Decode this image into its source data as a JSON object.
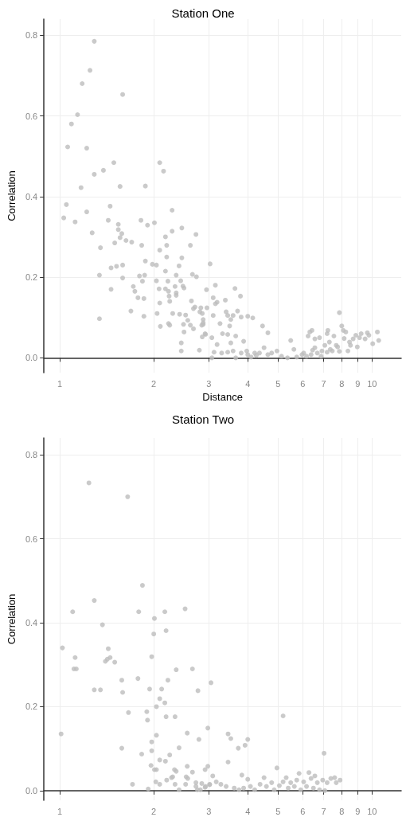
{
  "chart_data": [
    {
      "type": "scatter",
      "title": "Station One",
      "xlabel": "Distance",
      "ylabel": "Correlation",
      "log": "x",
      "grid": true,
      "marker": "circle",
      "color": "#bdbdbd",
      "xlim": [
        0.89,
        12.4
      ],
      "xticks": [
        1,
        2,
        3,
        4,
        5,
        6,
        7,
        8,
        9,
        10
      ],
      "ylim": [
        -0.037,
        0.84
      ],
      "yticks": [
        {
          "value": 0,
          "label": "0.0"
        },
        0.2,
        0.4,
        0.6,
        0.8
      ],
      "x": [
        1.29,
        1.25,
        1.18,
        1.59,
        1.14,
        1.09,
        1.06,
        1.22,
        1.49,
        2.09,
        2.15,
        1.38,
        1.29,
        1.56,
        1.88,
        1.17,
        1.05,
        1.45,
        2.29,
        1.22,
        1.03,
        1.12,
        1.43,
        1.82,
        1.54,
        1.91,
        2.01,
        2.46,
        2.73,
        1.54,
        2.29,
        1.58,
        2.18,
        1.56,
        1.27,
        1.63,
        1.7,
        1.5,
        1.35,
        1.83,
        2.2,
        2.62,
        2.09,
        2.2,
        2.46,
        1.88,
        1.98,
        2.04,
        1.59,
        1.52,
        1.46,
        2.41,
        2.18,
        1.34,
        2.36,
        1.87,
        1.8,
        2.66,
        2.74,
        1.59,
        2.04,
        1.84,
        2.22,
        2.44,
        1.72,
        2.34,
        2.48,
        2.5,
        1.46,
        2.08,
        2.18,
        2.95,
        1.74,
        2.23,
        2.36,
        2.24,
        2.36,
        1.78,
        1.86,
        2.25,
        2.64,
        2.09,
        2.71,
        2.68,
        2.83,
        2.96,
        1.69,
        2.81,
        2.3,
        2.86,
        2.05,
        2.42,
        2.53,
        1.34,
        1.86,
        2.57,
        2.23,
        2.25,
        2.49,
        2.62,
        2.85,
        2.88,
        2.1,
        2.68,
        2.5,
        2.92,
        2.86,
        2.45,
        2.45,
        2.8,
        3.03,
        3.15,
        3.64,
        3.1,
        3.79,
        3.39,
        3.19,
        3.15,
        3.41,
        3.71,
        3.45,
        3.59,
        3.1,
        3.81,
        4.0,
        4.15,
        3.53,
        2.88,
        2.88,
        3.26,
        4.46,
        3.5,
        3.32,
        3.45,
        4.64,
        2.93,
        3.07,
        3.66,
        3.53,
        3.19,
        3.88,
        3.12,
        3.3,
        3.45,
        3.07,
        3.59,
        3.66,
        3.81,
        4.0,
        4.1,
        4.26,
        4.36,
        4.51,
        4.64,
        4.77,
        4.96,
        5.13,
        5.36,
        5.49,
        5.62,
        5.74,
        5.97,
        6.17,
        6.24,
        6.32,
        6.42,
        6.45,
        6.56,
        6.56,
        6.79,
        6.87,
        6.91,
        7.06,
        7.18,
        7.22,
        7.3,
        7.46,
        7.55,
        7.68,
        7.86,
        7.86,
        8.0,
        8.09,
        8.24,
        8.14,
        8.37,
        8.47,
        8.53,
        8.7,
        8.87,
        8.97,
        9.12,
        9.23,
        9.5,
        9.66,
        9.77,
        10.05,
        10.4,
        10.5,
        6.68,
        7.18,
        7.35,
        7.76,
        6.38,
        6.04,
        4.21,
        3.97
      ],
      "values": [
        0.785,
        0.713,
        0.68,
        0.653,
        0.603,
        0.58,
        0.523,
        0.52,
        0.484,
        0.484,
        0.463,
        0.465,
        0.455,
        0.425,
        0.426,
        0.422,
        0.38,
        0.376,
        0.366,
        0.362,
        0.347,
        0.337,
        0.341,
        0.341,
        0.331,
        0.329,
        0.335,
        0.322,
        0.306,
        0.318,
        0.314,
        0.308,
        0.3,
        0.298,
        0.31,
        0.291,
        0.287,
        0.285,
        0.273,
        0.279,
        0.279,
        0.279,
        0.267,
        0.25,
        0.248,
        0.24,
        0.232,
        0.23,
        0.23,
        0.227,
        0.223,
        0.228,
        0.215,
        0.205,
        0.205,
        0.205,
        0.203,
        0.207,
        0.201,
        0.198,
        0.191,
        0.19,
        0.19,
        0.191,
        0.177,
        0.177,
        0.178,
        0.173,
        0.17,
        0.171,
        0.171,
        0.169,
        0.165,
        0.165,
        0.161,
        0.153,
        0.155,
        0.149,
        0.147,
        0.14,
        0.141,
        0.136,
        0.126,
        0.122,
        0.124,
        0.124,
        0.116,
        0.114,
        0.11,
        0.11,
        0.11,
        0.108,
        0.106,
        0.097,
        0.103,
        0.093,
        0.085,
        0.081,
        0.083,
        0.081,
        0.081,
        0.087,
        0.078,
        0.072,
        0.064,
        0.06,
        0.052,
        0.037,
        0.017,
        0.019,
        0.233,
        0.18,
        0.172,
        0.149,
        0.153,
        0.143,
        0.138,
        0.134,
        0.114,
        0.116,
        0.105,
        0.105,
        0.105,
        0.101,
        0.103,
        0.099,
        0.095,
        0.095,
        0.083,
        0.085,
        0.079,
        0.079,
        0.06,
        0.058,
        0.062,
        0.058,
        0.05,
        0.054,
        0.037,
        0.033,
        0.041,
        0.014,
        0.012,
        0.014,
        0.0,
        0.017,
        0.0,
        0.012,
        0.008,
        0.002,
        0.006,
        0.012,
        0.025,
        0.008,
        0.012,
        0.017,
        0.004,
        0.0,
        0.043,
        0.021,
        0.002,
        0.008,
        0.004,
        0.054,
        0.064,
        0.068,
        0.019,
        0.025,
        0.047,
        0.05,
        0.004,
        0.017,
        0.031,
        0.06,
        0.068,
        0.039,
        0.017,
        0.054,
        0.031,
        0.112,
        0.016,
        0.079,
        0.068,
        0.064,
        0.048,
        0.017,
        0.039,
        0.031,
        0.047,
        0.056,
        0.027,
        0.05,
        0.06,
        0.047,
        0.062,
        0.056,
        0.035,
        0.064,
        0.043,
        0.012,
        0.014,
        0.021,
        0.027,
        0.008,
        0.012,
        0.012,
        0.017
      ]
    },
    {
      "type": "scatter",
      "title": "Station Two",
      "ylabel": "Correlation",
      "log": "x",
      "grid": true,
      "marker": "circle",
      "color": "#bdbdbd",
      "xlim": [
        0.89,
        12.4
      ],
      "xticks": [
        1,
        2,
        3,
        4,
        5,
        6,
        7,
        8,
        9,
        10
      ],
      "ylim": [
        -0.023,
        0.84
      ],
      "yticks": [
        {
          "value": 0,
          "label": "0.0"
        },
        0.2,
        0.4,
        0.6,
        0.8
      ],
      "x": [
        1.24,
        1.65,
        1.84,
        1.29,
        1.1,
        1.79,
        2.17,
        2.52,
        1.37,
        2.01,
        2.19,
        2.0,
        1.02,
        1.43,
        1.12,
        1.97,
        1.45,
        1.42,
        1.4,
        1.5,
        1.11,
        1.13,
        2.36,
        2.66,
        1.58,
        1.78,
        2.22,
        3.05,
        1.29,
        1.35,
        1.94,
        2.12,
        2.77,
        1.59,
        2.09,
        2.04,
        2.17,
        1.66,
        1.9,
        2.19,
        2.34,
        1.91,
        2.98,
        1.01,
        2.56,
        2.04,
        2.79,
        1.97,
        1.58,
        2.41,
        1.97,
        1.83,
        2.25,
        2.09,
        2.18,
        1.96,
        2.56,
        2.01,
        2.04,
        2.33,
        2.36,
        2.66,
        2.92,
        2.98,
        2.54,
        2.57,
        2.28,
        2.3,
        2.2,
        2.73,
        2.03,
        1.71,
        2.09,
        2.34,
        2.53,
        2.85,
        1.92,
        2.41,
        2.73,
        2.76,
        2.92,
        3.02,
        5.19,
        3.46,
        3.53,
        4.0,
        3.73,
        3.92,
        3.46,
        7.02,
        4.96,
        3.09,
        3.83,
        4.0,
        4.51,
        5.84,
        6.28,
        5.31,
        6.56,
        3.17,
        3.28,
        3.41,
        3.62,
        3.75,
        3.88,
        4.08,
        4.21,
        4.38,
        4.59,
        4.77,
        4.86,
        5.05,
        5.19,
        5.39,
        5.49,
        5.64,
        5.74,
        5.91,
        6.04,
        6.17,
        6.38,
        6.49,
        6.68,
        6.79,
        6.95,
        7.06,
        7.18,
        7.38,
        7.59,
        7.68,
        7.9,
        2.93,
        2.82,
        3.02
      ],
      "values": [
        0.733,
        0.7,
        0.489,
        0.453,
        0.426,
        0.426,
        0.426,
        0.433,
        0.395,
        0.41,
        0.381,
        0.373,
        0.34,
        0.338,
        0.317,
        0.319,
        0.317,
        0.313,
        0.308,
        0.306,
        0.29,
        0.29,
        0.288,
        0.29,
        0.263,
        0.267,
        0.263,
        0.257,
        0.24,
        0.24,
        0.242,
        0.242,
        0.238,
        0.234,
        0.219,
        0.2,
        0.209,
        0.186,
        0.188,
        0.176,
        0.176,
        0.168,
        0.149,
        0.135,
        0.137,
        0.132,
        0.122,
        0.116,
        0.101,
        0.102,
        0.095,
        0.087,
        0.085,
        0.073,
        0.07,
        0.06,
        0.058,
        0.05,
        0.05,
        0.05,
        0.046,
        0.044,
        0.05,
        0.058,
        0.033,
        0.029,
        0.031,
        0.033,
        0.025,
        0.019,
        0.021,
        0.015,
        0.015,
        0.015,
        0.015,
        0.017,
        0.004,
        0.002,
        0.01,
        0.002,
        0.008,
        0.014,
        0.178,
        0.135,
        0.124,
        0.122,
        0.101,
        0.108,
        0.068,
        0.089,
        0.054,
        0.035,
        0.037,
        0.027,
        0.031,
        0.041,
        0.043,
        0.031,
        0.035,
        0.021,
        0.015,
        0.01,
        0.006,
        0.002,
        0.006,
        0.01,
        0.002,
        0.015,
        0.01,
        0.019,
        0.002,
        0.012,
        0.021,
        0.006,
        0.019,
        0.01,
        0.025,
        0.002,
        0.021,
        0.01,
        0.029,
        0.006,
        0.019,
        0.002,
        0.025,
        0.0,
        0.019,
        0.029,
        0.031,
        0.019,
        0.025,
        0.01,
        0.002,
        0.015
      ]
    }
  ]
}
